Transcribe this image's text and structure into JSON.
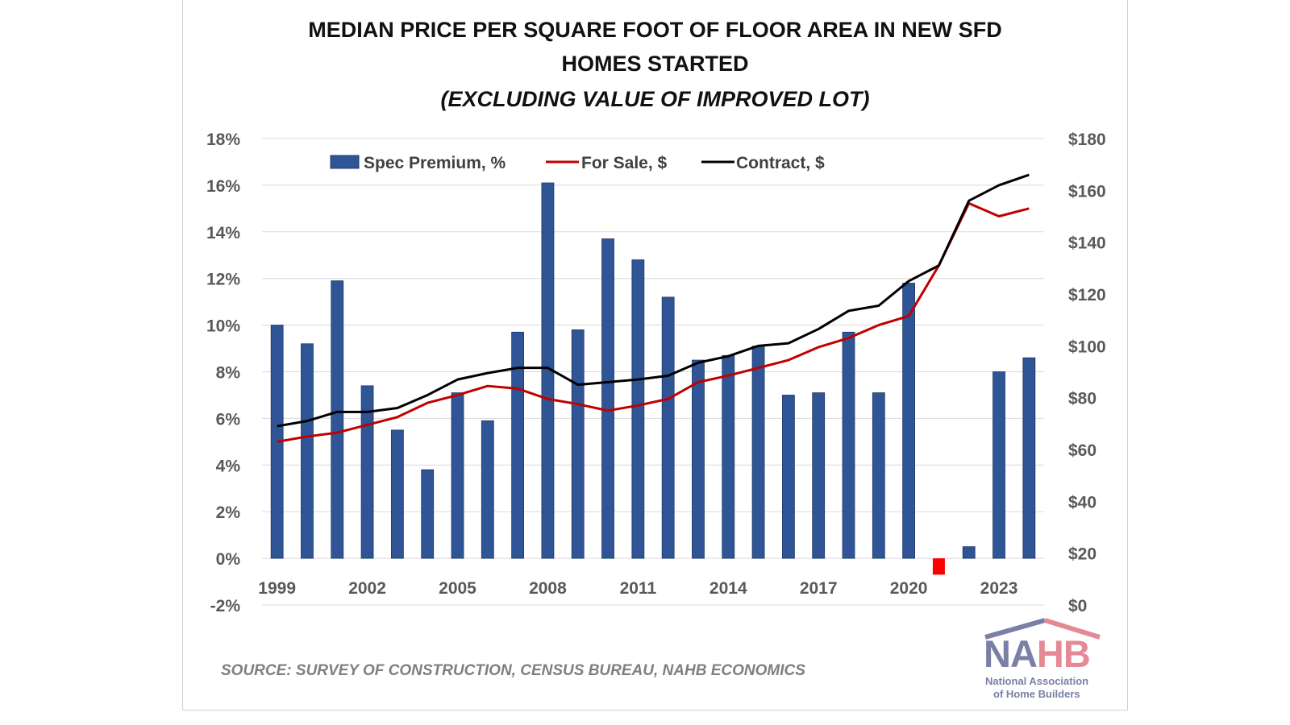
{
  "chart_data": {
    "type": "bar+line",
    "title": "MEDIAN PRICE PER SQUARE FOOT OF FLOOR AREA IN NEW SFD HOMES STARTED",
    "title_line1": "MEDIAN PRICE PER SQUARE FOOT OF FLOOR AREA IN NEW SFD",
    "title_line2": "HOMES STARTED",
    "subtitle": "(EXCLUDING VALUE OF IMPROVED LOT)",
    "source": "SOURCE: SURVEY OF CONSTRUCTION, CENSUS BUREAU, NAHB ECONOMICS",
    "categories": [
      1999,
      2000,
      2001,
      2002,
      2003,
      2004,
      2005,
      2006,
      2007,
      2008,
      2009,
      2010,
      2011,
      2012,
      2013,
      2014,
      2015,
      2016,
      2017,
      2018,
      2019,
      2020,
      2021,
      2022,
      2023,
      2024
    ],
    "x_tick_labels": [
      "1999",
      "2002",
      "2005",
      "2008",
      "2011",
      "2014",
      "2017",
      "2020",
      "2023"
    ],
    "y_left": {
      "range": [
        -2,
        18
      ],
      "tick_labels": [
        "-2%",
        "0%",
        "2%",
        "4%",
        "6%",
        "8%",
        "10%",
        "12%",
        "14%",
        "16%",
        "18%"
      ]
    },
    "y_right": {
      "range": [
        0,
        180
      ],
      "tick_labels": [
        "$0",
        "$20",
        "$40",
        "$60",
        "$80",
        "$100",
        "$120",
        "$140",
        "$160",
        "$180"
      ]
    },
    "grid": true,
    "legend": "top",
    "series": [
      {
        "name": "Spec Premium, %",
        "type": "bar",
        "axis": "left",
        "color": "#2f5597",
        "negative_color": "#ff0000",
        "values": [
          10.0,
          9.2,
          11.9,
          7.4,
          5.5,
          3.8,
          7.1,
          5.9,
          9.7,
          16.1,
          9.8,
          13.7,
          12.8,
          11.2,
          8.5,
          8.7,
          9.1,
          7.0,
          7.1,
          9.7,
          7.1,
          11.8,
          -0.7,
          0.5,
          8.0,
          8.6
        ]
      },
      {
        "name": "For Sale, $",
        "type": "line",
        "axis": "right",
        "color": "#c00000",
        "values": [
          63,
          65,
          66.5,
          69.5,
          72.5,
          78,
          81,
          84.5,
          83.5,
          79.5,
          77.5,
          75,
          77,
          79.5,
          86,
          88.5,
          91.5,
          94.5,
          99.5,
          103,
          108,
          111.5,
          131,
          155,
          150,
          153
        ]
      },
      {
        "name": "Contract, $",
        "type": "line",
        "axis": "right",
        "color": "#000000",
        "values": [
          69,
          71,
          74.5,
          74.5,
          76,
          81,
          87,
          89.5,
          91.5,
          91.5,
          85,
          86,
          87,
          88.5,
          93.5,
          96,
          100,
          101,
          106.5,
          113.5,
          115.5,
          125,
          131,
          156,
          162,
          166
        ]
      }
    ]
  },
  "logo": {
    "text": "NAHB",
    "line1": "National Association",
    "line2": "of Home Builders"
  }
}
